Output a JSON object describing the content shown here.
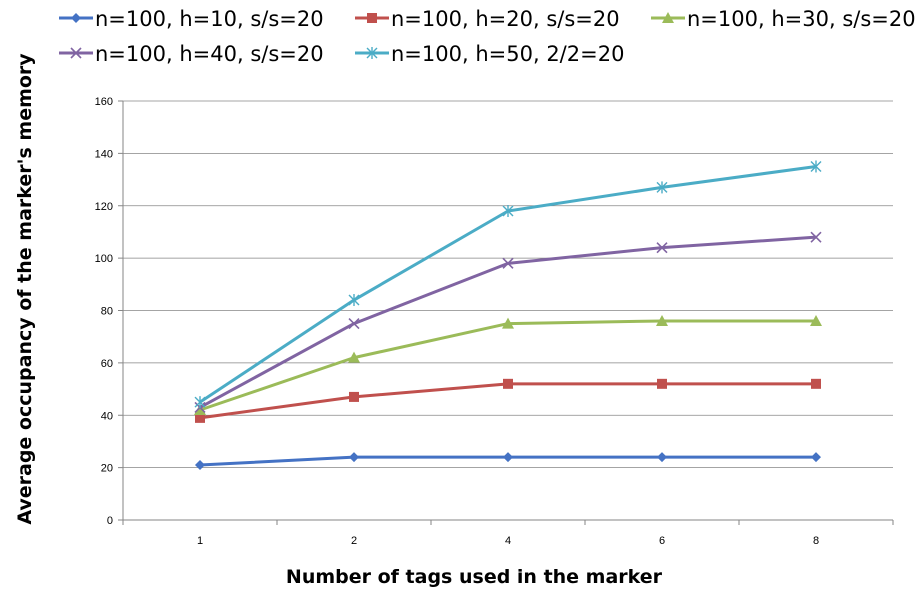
{
  "chart_data": {
    "type": "line",
    "title": "",
    "xlabel": "Number of tags used in the marker",
    "ylabel": "Average occupancy of the marker's memory",
    "categories": [
      "1",
      "2",
      "4",
      "6",
      "8"
    ],
    "ylim": [
      0,
      160
    ],
    "yticks": [
      0,
      20,
      40,
      60,
      80,
      100,
      120,
      140,
      160
    ],
    "grid": "horizontal",
    "legend_position": "top",
    "series": [
      {
        "name": "n=100, h=10, s/s=20",
        "color": "#4472C4",
        "marker": "diamond",
        "values": [
          21,
          24,
          24,
          24,
          24
        ]
      },
      {
        "name": "n=100, h=20, s/s=20",
        "color": "#C0504D",
        "marker": "square",
        "values": [
          39,
          47,
          52,
          52,
          52
        ]
      },
      {
        "name": "n=100, h=30, s/s=20",
        "color": "#9BBB59",
        "marker": "triangle",
        "values": [
          42,
          62,
          75,
          76,
          76
        ]
      },
      {
        "name": "n=100, h=40, s/s=20",
        "color": "#8064A2",
        "marker": "x",
        "values": [
          43,
          75,
          98,
          104,
          108
        ]
      },
      {
        "name": "n=100, h=50, 2/2=20",
        "color": "#4BACC6",
        "marker": "star",
        "values": [
          45,
          84,
          118,
          127,
          135
        ]
      }
    ]
  }
}
